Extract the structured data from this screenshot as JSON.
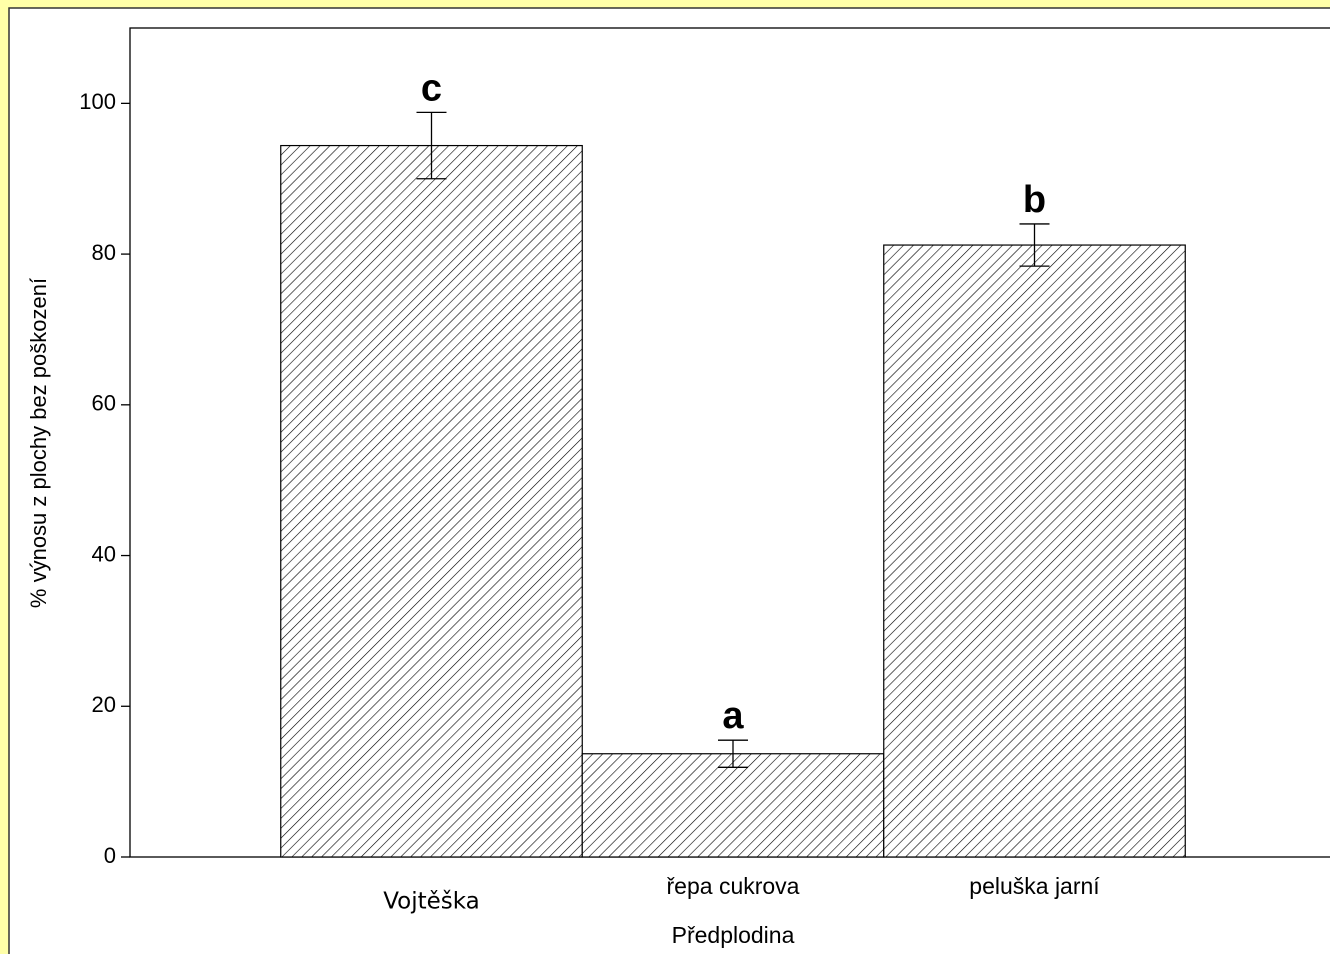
{
  "chart_data": {
    "type": "bar",
    "y_label": "% výnosu z plochy bez poškození",
    "x_label": "Předplodina",
    "categories": [
      "Vojtěška",
      "řepa cukrova",
      "peluška jarní"
    ],
    "values": [
      94.4,
      13.7,
      81.2
    ],
    "errors": [
      4.4,
      1.8,
      2.8
    ],
    "annotations": [
      "c",
      "a",
      "b"
    ],
    "color": "#000000",
    "ylim": [
      0,
      110
    ],
    "yticks": [
      0,
      20,
      40,
      60,
      80,
      100
    ]
  }
}
